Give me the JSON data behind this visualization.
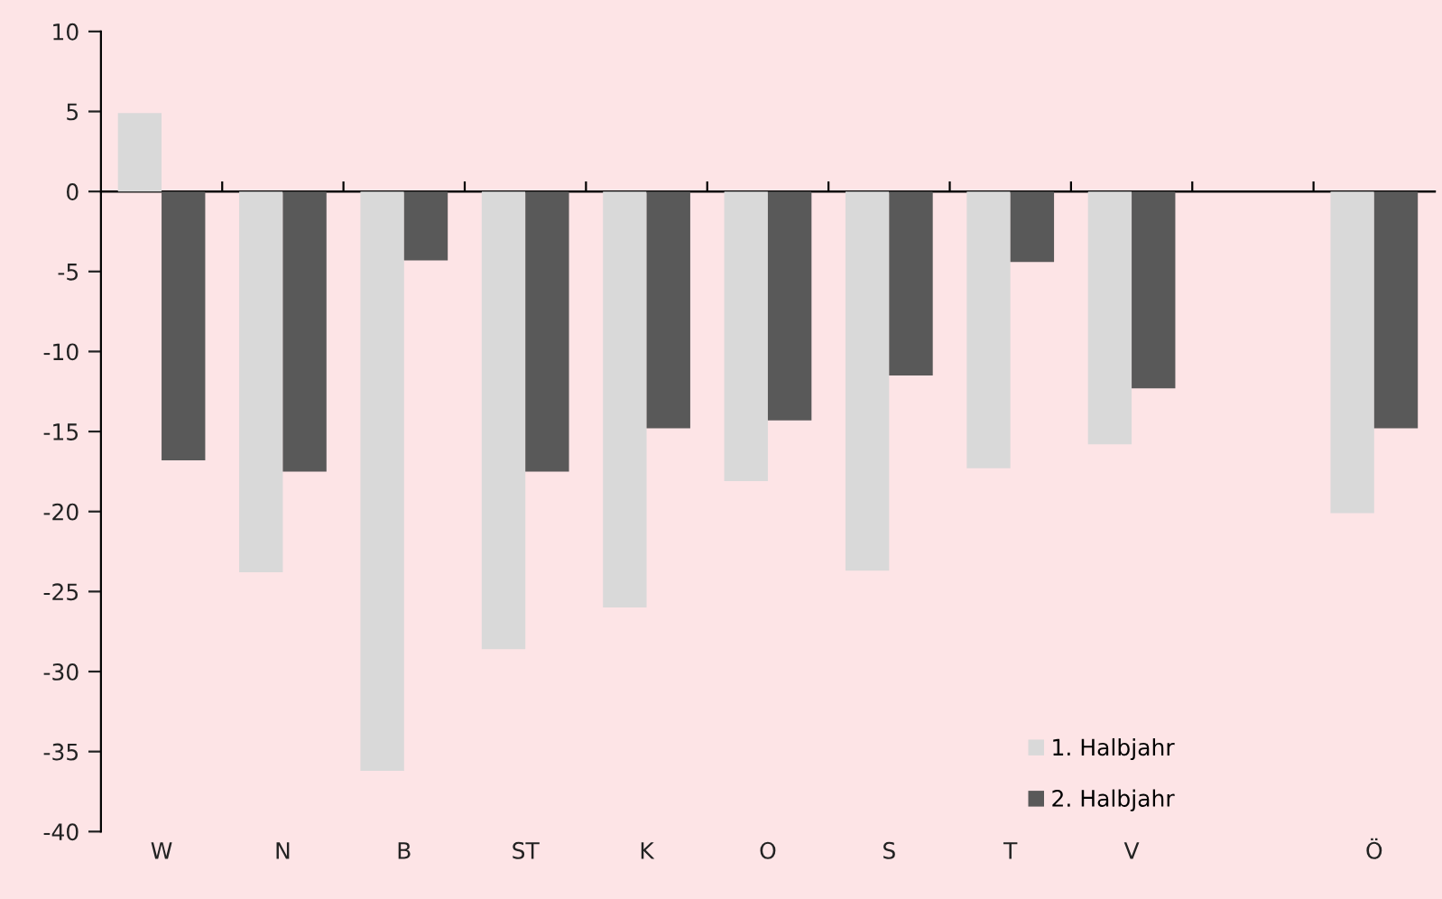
{
  "chart_data": {
    "type": "bar",
    "categories": [
      "W",
      "N",
      "B",
      "ST",
      "K",
      "O",
      "S",
      "T",
      "V",
      null,
      "Ö"
    ],
    "series": [
      {
        "name": "1. Halbjahr",
        "color": "#d9d9d9",
        "values": [
          4.9,
          -23.8,
          -36.2,
          -28.6,
          -26.0,
          -18.1,
          -23.7,
          -17.3,
          -15.8,
          null,
          -20.1
        ]
      },
      {
        "name": "2. Halbjahr",
        "color": "#595959",
        "values": [
          -16.8,
          -17.5,
          -4.3,
          -17.5,
          -14.8,
          -14.3,
          -11.5,
          -4.4,
          -12.3,
          null,
          -14.8
        ]
      }
    ],
    "ylim": [
      -40,
      10
    ],
    "yticks": [
      -40,
      -35,
      -30,
      -25,
      -20,
      -15,
      -10,
      -5,
      0,
      5,
      10
    ],
    "legend": "bottom right"
  }
}
